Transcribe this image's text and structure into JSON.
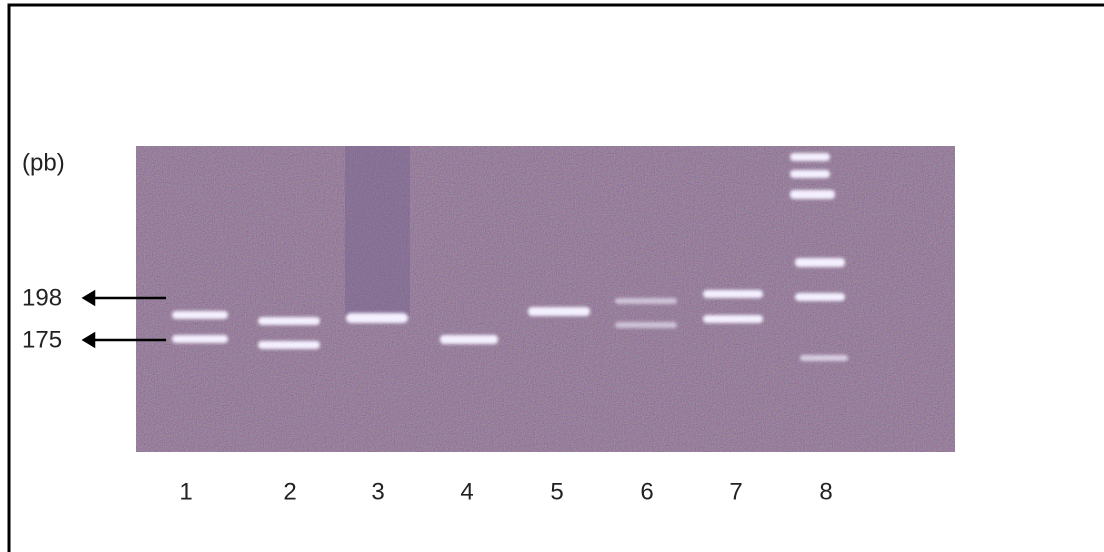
{
  "gel": {
    "size_unit": "(pb)",
    "size_markers": [
      "198",
      "175"
    ],
    "lanes": [
      "1",
      "2",
      "3",
      "4",
      "5",
      "6",
      "7",
      "8"
    ]
  }
}
